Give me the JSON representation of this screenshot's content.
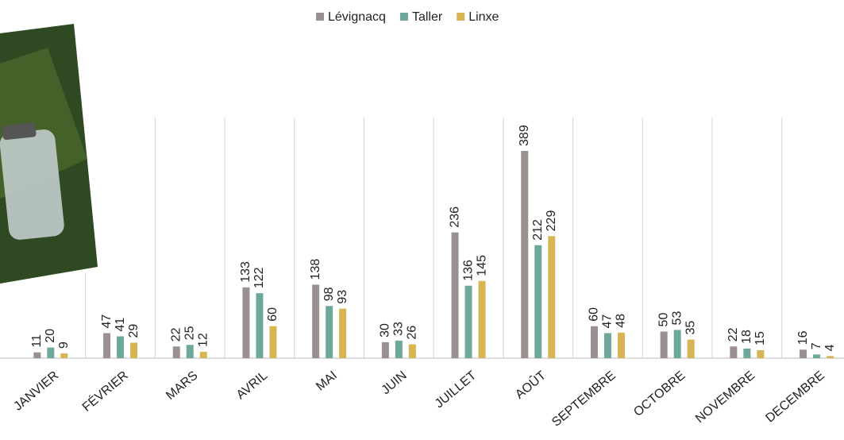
{
  "chart_data": {
    "type": "bar",
    "categories": [
      "JANVIER",
      "FÉVRIER",
      "MARS",
      "AVRIL",
      "MAI",
      "JUIN",
      "JUILLET",
      "AOÛT",
      "SEPTEMBRE",
      "OCTOBRE",
      "NOVEMBRE",
      "DECEMBRE"
    ],
    "series": [
      {
        "name": "Lévignacq",
        "color": "#9c8f8f",
        "values": [
          11,
          47,
          22,
          133,
          138,
          30,
          236,
          389,
          60,
          50,
          22,
          16
        ]
      },
      {
        "name": "Taller",
        "color": "#6ea89b",
        "values": [
          20,
          41,
          25,
          122,
          98,
          33,
          136,
          212,
          47,
          53,
          18,
          7
        ]
      },
      {
        "name": "Linxe",
        "color": "#d9b452",
        "values": [
          9,
          29,
          12,
          60,
          93,
          26,
          145,
          229,
          48,
          35,
          15,
          4
        ]
      }
    ],
    "grid": true,
    "data_labels": true
  }
}
